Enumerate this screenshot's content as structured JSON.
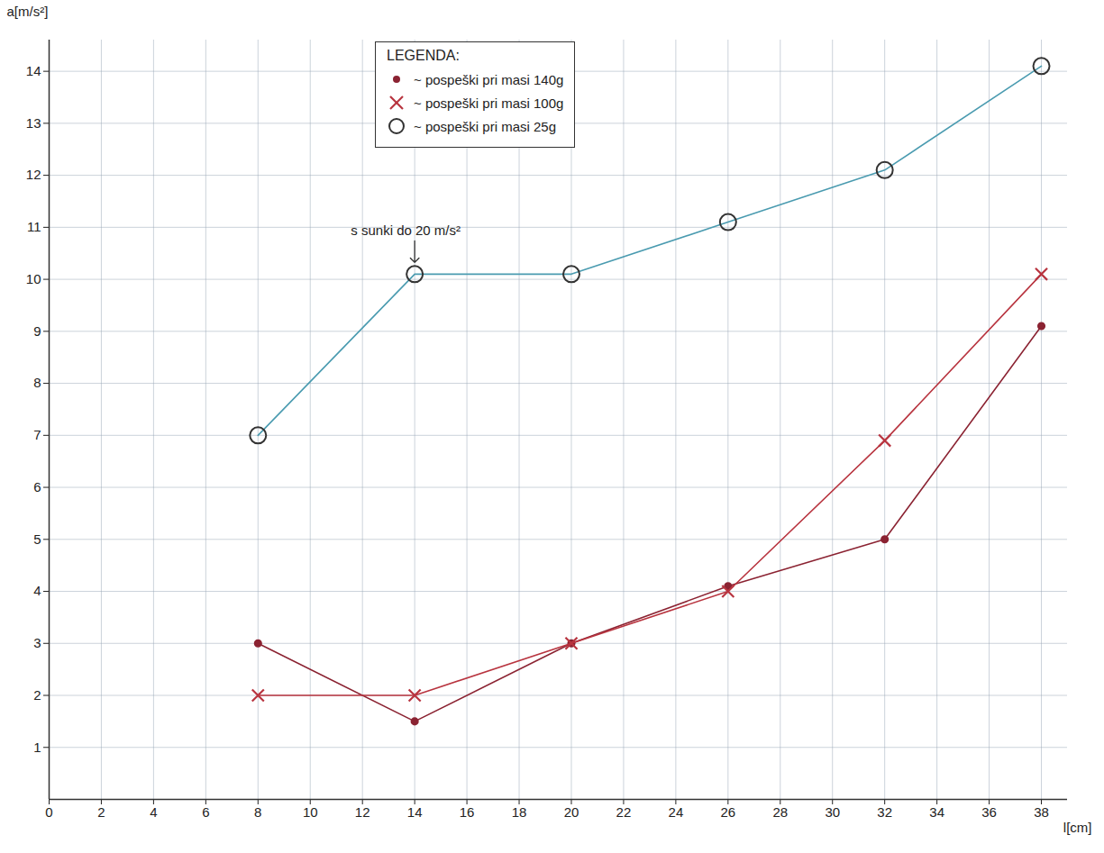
{
  "chart_data": {
    "type": "line",
    "x_label": "l[cm]",
    "y_label": "a[m/s²]",
    "x": [
      8,
      14,
      20,
      26,
      32,
      38
    ],
    "series": [
      {
        "name": "~ pospeški pri masi 140g",
        "color": "#8b2332",
        "marker": "dot",
        "values": [
          3,
          1.5,
          3,
          4.1,
          5,
          9.1
        ]
      },
      {
        "name": "~ pospeški pri masi 100g",
        "color": "#b8343f",
        "marker": "x",
        "values": [
          2,
          2,
          3,
          4,
          6.9,
          10.1
        ]
      },
      {
        "name": "~ pospeški pri masi 25g",
        "color": "#4a9bb0",
        "marker": "circle",
        "values": [
          7,
          10.1,
          10.1,
          11.1,
          12.1,
          14.1
        ]
      }
    ],
    "legend_title": "LEGENDA:",
    "legend": "top",
    "annotations": [
      {
        "text": "s sunki do 20 m/s²",
        "x": 14,
        "y": 10.1
      }
    ],
    "xlim": [
      0,
      39
    ],
    "ylim": [
      0,
      14.6
    ],
    "xticks": [
      0,
      2,
      4,
      6,
      8,
      10,
      12,
      14,
      16,
      18,
      20,
      22,
      24,
      26,
      28,
      30,
      32,
      34,
      36,
      38
    ],
    "yticks": [
      1,
      2,
      3,
      4,
      5,
      6,
      7,
      8,
      9,
      10,
      11,
      12,
      13,
      14
    ],
    "grid": true
  }
}
